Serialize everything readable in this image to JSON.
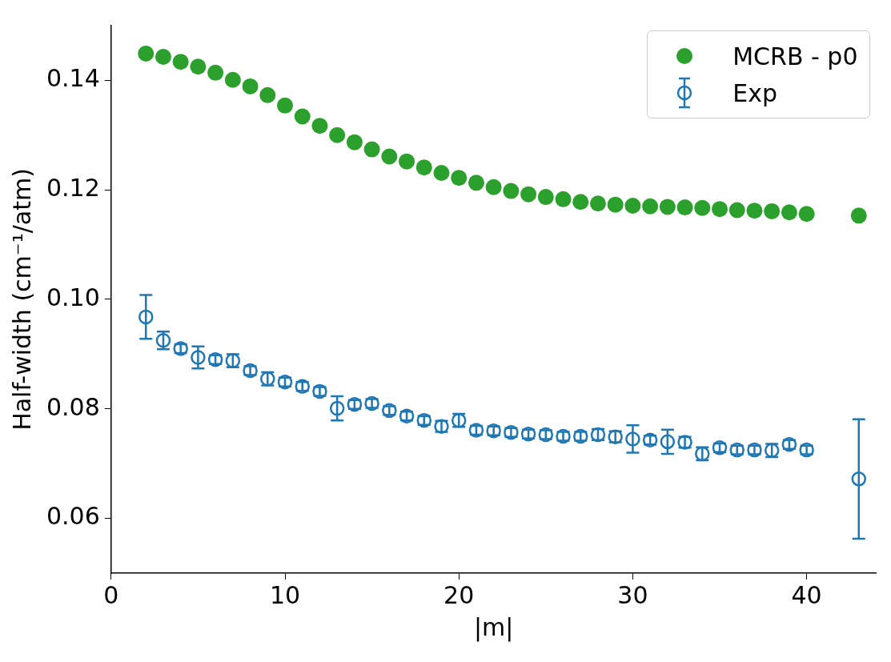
{
  "chart_data": {
    "type": "scatter",
    "xlabel": "|m|",
    "ylabel": "Half-width (cm⁻¹/atm)",
    "xlim": [
      0,
      44
    ],
    "ylim": [
      0.05,
      0.15
    ],
    "xticks": [
      0,
      10,
      20,
      30,
      40
    ],
    "yticks": [
      {
        "value": 0.06,
        "label": "0.06"
      },
      {
        "value": 0.08,
        "label": "0.08"
      },
      {
        "value": 0.1,
        "label": "0.10"
      },
      {
        "value": 0.12,
        "label": "0.12"
      },
      {
        "value": 0.14,
        "label": "0.14"
      }
    ],
    "grid": false,
    "legend": "top right",
    "marker": "circle",
    "series": [
      {
        "name": "MCRB - p0",
        "color": "#2ca02c",
        "x": [
          2,
          3,
          4,
          5,
          6,
          7,
          8,
          9,
          10,
          11,
          12,
          13,
          14,
          15,
          16,
          17,
          18,
          19,
          20,
          21,
          22,
          23,
          24,
          25,
          26,
          27,
          28,
          29,
          30,
          31,
          32,
          33,
          34,
          35,
          36,
          37,
          38,
          39,
          40,
          43
        ],
        "values": [
          0.1449,
          0.1443,
          0.1434,
          0.1425,
          0.1414,
          0.1401,
          0.1389,
          0.1373,
          0.1354,
          0.1334,
          0.1317,
          0.13,
          0.1287,
          0.1274,
          0.1261,
          0.1252,
          0.1241,
          0.1231,
          0.1222,
          0.1213,
          0.1205,
          0.1198,
          0.1192,
          0.1187,
          0.1183,
          0.1178,
          0.1175,
          0.1173,
          0.1171,
          0.117,
          0.1169,
          0.1168,
          0.1167,
          0.1165,
          0.1163,
          0.1162,
          0.1161,
          0.1159,
          0.1156,
          0.1153
        ]
      },
      {
        "name": "Exp",
        "color": "#1f77b4",
        "x": [
          2,
          3,
          4,
          5,
          6,
          7,
          8,
          9,
          10,
          11,
          12,
          13,
          14,
          15,
          16,
          17,
          18,
          19,
          20,
          21,
          22,
          23,
          24,
          25,
          26,
          27,
          28,
          29,
          30,
          31,
          32,
          33,
          34,
          35,
          36,
          37,
          38,
          39,
          40,
          43
        ],
        "values": [
          0.0968,
          0.0925,
          0.091,
          0.0894,
          0.089,
          0.0888,
          0.087,
          0.0855,
          0.0849,
          0.0841,
          0.0832,
          0.0801,
          0.0808,
          0.081,
          0.0797,
          0.0787,
          0.0779,
          0.0768,
          0.0779,
          0.0761,
          0.076,
          0.0757,
          0.0754,
          0.0753,
          0.075,
          0.075,
          0.0753,
          0.0749,
          0.0745,
          0.0743,
          0.074,
          0.0739,
          0.0718,
          0.0729,
          0.0725,
          0.0725,
          0.0724,
          0.0735,
          0.0725,
          0.0672
        ],
        "errors": [
          0.004,
          0.0016,
          0.0008,
          0.002,
          0.0008,
          0.0012,
          0.0008,
          0.0012,
          0.0008,
          0.0008,
          0.0008,
          0.0022,
          0.0008,
          0.0008,
          0.0008,
          0.0008,
          0.0008,
          0.001,
          0.0012,
          0.0008,
          0.0008,
          0.0008,
          0.0008,
          0.0008,
          0.0008,
          0.0008,
          0.001,
          0.001,
          0.0025,
          0.0008,
          0.0022,
          0.001,
          0.0012,
          0.0008,
          0.0008,
          0.0008,
          0.0012,
          0.0008,
          0.0008,
          0.0109
        ]
      }
    ]
  }
}
